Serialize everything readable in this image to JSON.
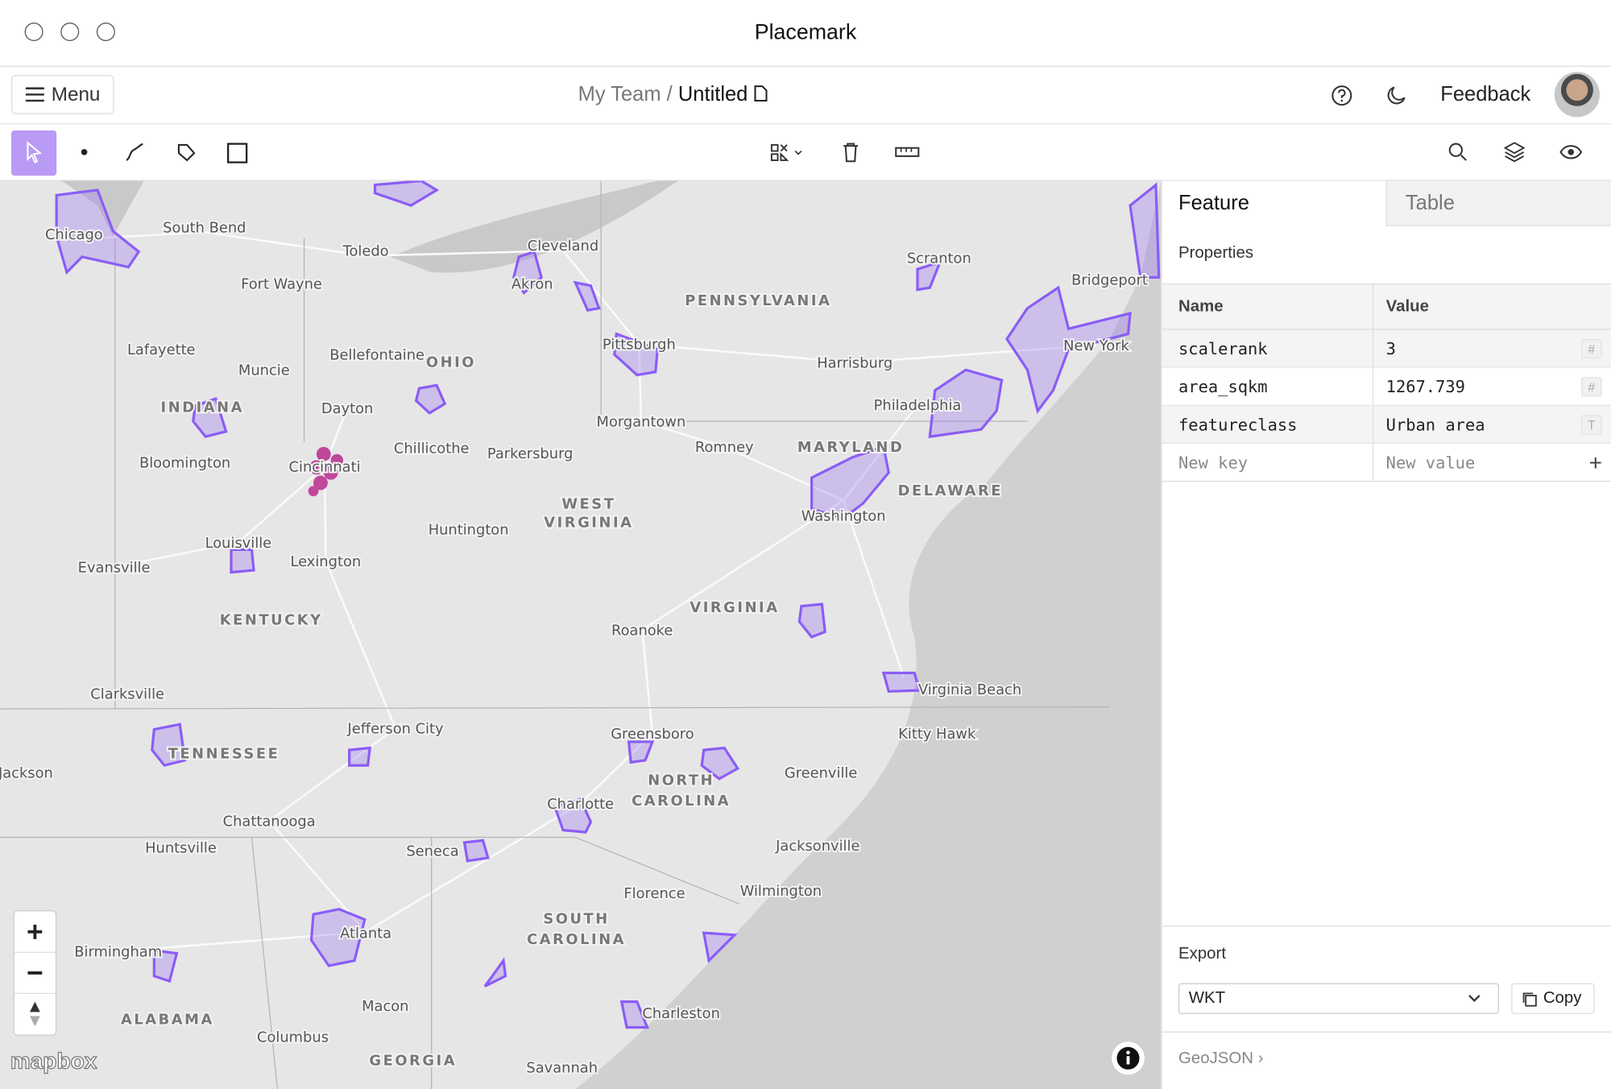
{
  "window": {
    "title": "Placemark"
  },
  "header": {
    "menu": "Menu",
    "team": "My Team",
    "separator": "/",
    "file_name": "Untitled",
    "feedback": "Feedback"
  },
  "map": {
    "labels": [
      "Chicago",
      "South Bend",
      "Toledo",
      "Cleveland",
      "Fort Wayne",
      "Akron",
      "PENNSYLVANIA",
      "Scranton",
      "Bridgeport",
      "Lafayette",
      "Bellefontaine",
      "OHIO",
      "Pittsburgh",
      "Harrisburg",
      "New York",
      "Muncie",
      "INDIANA",
      "Dayton",
      "Philadelphia",
      "Morgantown",
      "Chillicothe",
      "Parkersburg",
      "Romney",
      "MARYLAND",
      "Bloomington",
      "Cincinnati",
      "DELAWARE",
      "WEST",
      "VIRGINIA",
      "Washington",
      "Huntington",
      "Louisville",
      "Lexington",
      "Evansville",
      "KENTUCKY",
      "VIRGINIA",
      "Roanoke",
      "Virginia Beach",
      "Clarksville",
      "Jefferson City",
      "Kitty Hawk",
      "Greensboro",
      "TENNESSEE",
      "Jackson",
      "NORTH",
      "Greenville",
      "CAROLINA",
      "Charlotte",
      "Chattanooga",
      "Huntsville",
      "Seneca",
      "Jacksonville",
      "Florence",
      "Wilmington",
      "SOUTH",
      "CAROLINA",
      "Atlanta",
      "Birmingham",
      "ALABAMA",
      "Macon",
      "Charleston",
      "Columbus",
      "GEORGIA",
      "Savannah"
    ],
    "attribution": "mapbox"
  },
  "panel": {
    "tabs": [
      "Feature",
      "Table"
    ],
    "section": "Properties",
    "columns": [
      "Name",
      "Value"
    ],
    "rows": [
      [
        "scalerank",
        "3",
        "#"
      ],
      [
        "area_sqkm",
        "1267.739",
        "#"
      ],
      [
        "featureclass",
        "Urban area",
        "T"
      ]
    ],
    "new_key": "New key",
    "new_value": "New value",
    "new_action": "+",
    "export_label": "Export",
    "format": "WKT",
    "copy": "Copy",
    "geojson": "GeoJSON"
  }
}
